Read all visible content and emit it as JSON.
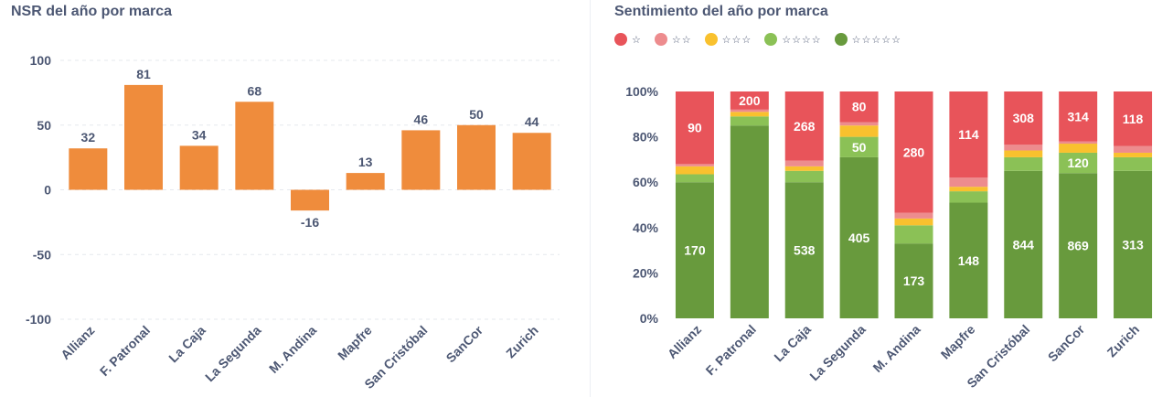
{
  "left_title": "NSR del año por marca",
  "right_title": "Sentimiento del año por marca",
  "chart_data": [
    {
      "type": "bar",
      "title": "NSR del año por marca",
      "categories": [
        "Allianz",
        "F. Patronal",
        "La Caja",
        "La Segunda",
        "M. Andina",
        "Mapfre",
        "San Cristóbal",
        "SanCor",
        "Zurich"
      ],
      "values": [
        32,
        81,
        34,
        68,
        -16,
        13,
        46,
        50,
        44
      ],
      "ylim": [
        -100,
        100
      ],
      "yticks": [
        "100",
        "50",
        "0",
        "-50",
        "-100"
      ],
      "grid": true,
      "color": "#ef8c3c"
    },
    {
      "type": "bar",
      "stacked": true,
      "normalized": true,
      "title": "Sentimiento del año por marca",
      "categories": [
        "Allianz",
        "F. Patronal",
        "La Caja",
        "La Segunda",
        "M. Andina",
        "Mapfre",
        "San Cristóbal",
        "SanCor",
        "Zurich"
      ],
      "yticks": [
        "100%",
        "80%",
        "60%",
        "40%",
        "20%",
        "0%"
      ],
      "ylim": [
        0,
        1
      ],
      "legend_position": "top-left",
      "series": [
        {
          "name": "☆☆☆☆☆",
          "color": "#689a3d",
          "share": [
            0.6,
            0.85,
            0.6,
            0.71,
            0.33,
            0.51,
            0.65,
            0.64,
            0.65
          ],
          "labels": [
            "170",
            "",
            "538",
            "405",
            "173",
            "148",
            "844",
            "869",
            "313"
          ]
        },
        {
          "name": "☆☆☆☆",
          "color": "#8bc156",
          "share": [
            0.035,
            0.04,
            0.05,
            0.09,
            0.08,
            0.05,
            0.06,
            0.09,
            0.06
          ],
          "labels": [
            "",
            "",
            "",
            "50",
            "",
            "",
            "",
            "120",
            ""
          ]
        },
        {
          "name": "☆☆☆",
          "color": "#f9c12e",
          "share": [
            0.035,
            0.02,
            0.02,
            0.05,
            0.03,
            0.02,
            0.03,
            0.04,
            0.02
          ],
          "labels": [
            "",
            "",
            "",
            "",
            "",
            "",
            "",
            "",
            ""
          ]
        },
        {
          "name": "☆☆",
          "color": "#ed8c8e",
          "share": [
            0.01,
            0.01,
            0.025,
            0.015,
            0.025,
            0.04,
            0.025,
            0.01,
            0.03
          ],
          "labels": [
            "",
            "",
            "",
            "",
            "",
            "",
            "",
            "",
            ""
          ]
        },
        {
          "name": "☆",
          "color": "#e8545a",
          "share": [
            0.32,
            0.08,
            0.305,
            0.135,
            0.535,
            0.38,
            0.235,
            0.22,
            0.24
          ],
          "labels": [
            "90",
            "200",
            "268",
            "80",
            "280",
            "114",
            "308",
            "314",
            "118"
          ]
        }
      ]
    }
  ]
}
